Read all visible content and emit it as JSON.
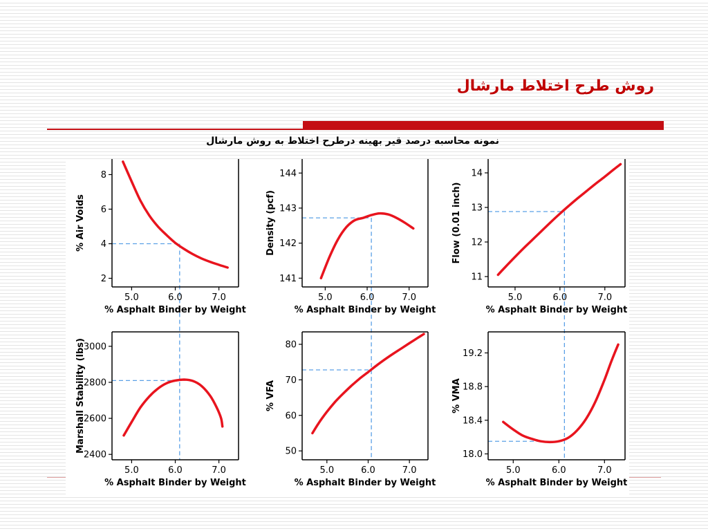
{
  "slide": {
    "title": "روش طرح اختلاط مارشال",
    "subtitle": "نمونه محاسبه درصد قیر بهینه درطرح اختلاط به روش مارشال"
  },
  "colors": {
    "curve": "#e8141e",
    "guide": "#5aa0e6",
    "accent": "#c40e14"
  },
  "optimum_binder": 6.1,
  "chart_data": [
    {
      "type": "line",
      "xlabel": "% Asphalt Binder by Weight",
      "ylabel": "% Air Voids",
      "xticks": [
        5.0,
        6.0,
        7.0
      ],
      "xtick_labels": [
        "5.0",
        "6.0",
        "7.0"
      ],
      "xlim": [
        4.55,
        7.45
      ],
      "yticks": [
        2,
        4,
        6,
        8
      ],
      "ytick_labels": [
        "2",
        "4",
        "6",
        "8"
      ],
      "ylim": [
        1.5,
        8.9
      ],
      "x": [
        4.8,
        5.0,
        5.2,
        5.4,
        5.6,
        5.8,
        6.0,
        6.2,
        6.4,
        6.6,
        6.8,
        7.0,
        7.2
      ],
      "y": [
        8.75,
        7.6,
        6.5,
        5.65,
        5.0,
        4.5,
        4.05,
        3.7,
        3.4,
        3.15,
        2.95,
        2.78,
        2.62
      ],
      "guide_value": 4.0
    },
    {
      "type": "line",
      "xlabel": "% Asphalt Binder by Weight",
      "ylabel": "Density (pcf)",
      "xticks": [
        5.0,
        6.0,
        7.0
      ],
      "xtick_labels": [
        "5.0",
        "6.0",
        "7.0"
      ],
      "xlim": [
        4.45,
        7.45
      ],
      "yticks": [
        141,
        142,
        143,
        144
      ],
      "ytick_labels": [
        "141",
        "142",
        "143",
        "144"
      ],
      "ylim": [
        140.75,
        144.4
      ],
      "x": [
        4.9,
        5.1,
        5.3,
        5.5,
        5.7,
        5.9,
        6.1,
        6.3,
        6.5,
        6.7,
        6.9,
        7.1
      ],
      "y": [
        141.0,
        141.6,
        142.1,
        142.45,
        142.65,
        142.72,
        142.8,
        142.85,
        142.82,
        142.72,
        142.58,
        142.42
      ],
      "guide_value": 142.72
    },
    {
      "type": "line",
      "xlabel": "% Asphalt Binder by Weight",
      "ylabel": "Flow (0.01 inch)",
      "xticks": [
        5.0,
        6.0,
        7.0
      ],
      "xtick_labels": [
        "5.0",
        "6.0",
        "7.0"
      ],
      "xlim": [
        4.4,
        7.45
      ],
      "yticks": [
        11,
        12,
        13,
        14
      ],
      "ytick_labels": [
        "11",
        "12",
        "13",
        "14"
      ],
      "ylim": [
        10.7,
        14.4
      ],
      "x": [
        4.62,
        4.8,
        5.0,
        5.2,
        5.4,
        5.6,
        5.8,
        6.0,
        6.2,
        6.4,
        6.6,
        6.8,
        7.0,
        7.2,
        7.35
      ],
      "y": [
        11.05,
        11.3,
        11.57,
        11.83,
        12.08,
        12.33,
        12.58,
        12.82,
        13.05,
        13.27,
        13.48,
        13.69,
        13.89,
        14.1,
        14.25
      ],
      "guide_value": 12.88
    },
    {
      "type": "line",
      "xlabel": "% Asphalt Binder by Weight",
      "ylabel": "Marshall Stability (lbs)",
      "xticks": [
        5.0,
        6.0,
        7.0
      ],
      "xtick_labels": [
        "5.0",
        "6.0",
        "7.0"
      ],
      "xlim": [
        4.55,
        7.45
      ],
      "yticks": [
        2400,
        2600,
        2800,
        3000
      ],
      "ytick_labels": [
        "2400",
        "2600",
        "2800",
        "3000"
      ],
      "ylim": [
        2370,
        3080
      ],
      "x": [
        4.82,
        5.0,
        5.2,
        5.4,
        5.6,
        5.8,
        6.0,
        6.2,
        6.4,
        6.6,
        6.8,
        6.95,
        7.05,
        7.08
      ],
      "y": [
        2505,
        2580,
        2660,
        2720,
        2765,
        2795,
        2810,
        2815,
        2808,
        2780,
        2725,
        2660,
        2600,
        2555
      ],
      "guide_value": 2810
    },
    {
      "type": "line",
      "xlabel": "% Asphalt Binder by Weight",
      "ylabel": "% VFA",
      "xticks": [
        5.0,
        6.0,
        7.0
      ],
      "xtick_labels": [
        "5.0",
        "6.0",
        "7.0"
      ],
      "xlim": [
        4.4,
        7.45
      ],
      "yticks": [
        50,
        60,
        70,
        80
      ],
      "ytick_labels": [
        "50",
        "60",
        "70",
        "80"
      ],
      "ylim": [
        47.5,
        83.5
      ],
      "x": [
        4.65,
        4.8,
        5.0,
        5.2,
        5.4,
        5.6,
        5.8,
        6.0,
        6.2,
        6.4,
        6.6,
        6.8,
        7.0,
        7.2,
        7.35
      ],
      "y": [
        55.0,
        57.8,
        61.0,
        63.8,
        66.2,
        68.4,
        70.4,
        72.2,
        74.0,
        75.7,
        77.3,
        78.8,
        80.3,
        81.8,
        82.9
      ],
      "guide_value": 72.8
    },
    {
      "type": "line",
      "xlabel": "% Asphalt Binder by Weight",
      "ylabel": "% VMA",
      "xticks": [
        5.0,
        6.0,
        7.0
      ],
      "xtick_labels": [
        "5.0",
        "6.0",
        "7.0"
      ],
      "xlim": [
        4.45,
        7.45
      ],
      "yticks": [
        18.0,
        18.4,
        18.8,
        19.2
      ],
      "ytick_labels": [
        "18.0",
        "18.4",
        "18.8",
        "19.2"
      ],
      "ylim": [
        17.93,
        19.45
      ],
      "x": [
        4.78,
        5.0,
        5.2,
        5.4,
        5.6,
        5.8,
        6.0,
        6.2,
        6.4,
        6.6,
        6.8,
        7.0,
        7.15,
        7.3
      ],
      "y": [
        18.38,
        18.29,
        18.22,
        18.18,
        18.15,
        18.14,
        18.15,
        18.19,
        18.28,
        18.42,
        18.62,
        18.88,
        19.1,
        19.3
      ],
      "guide_value": 18.15
    }
  ]
}
